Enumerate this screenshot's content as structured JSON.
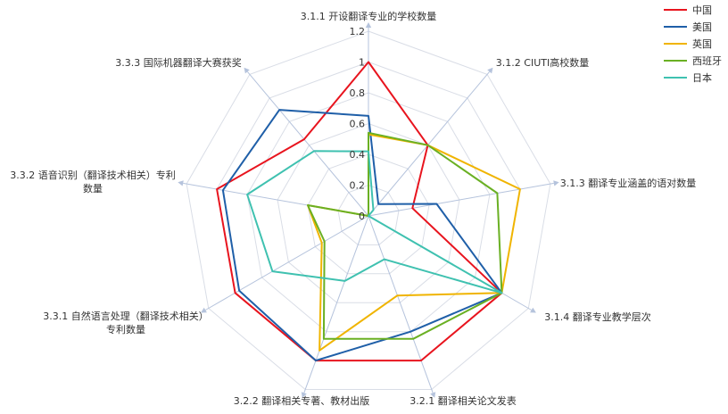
{
  "chart_data": {
    "type": "radar",
    "axes": [
      "3.1.1 开设翻译专业的学校数量",
      "3.1.2 CIUTI高校数量",
      "3.1.3 翻译专业涵盖的语对数量",
      "3.1.4 翻译专业教学层次",
      "3.2.1 翻译相关论文发表",
      "3.2.2 翻译相关专著、教材出版",
      "3.3.1 自然语言处理（翻译技术相关）专利数量",
      "3.3.2 语音识别（翻译技术相关）专利数量",
      "3.3.3 国际机器翻译大赛获奖"
    ],
    "axis_label_lines": [
      [
        "3.1.1 开设翻译专业的学校数量"
      ],
      [
        "3.1.2 CIUTI高校数量"
      ],
      [
        "3.1.3 翻译专业涵盖的语对数量"
      ],
      [
        "3.1.4 翻译专业教学层次"
      ],
      [
        "3.2.1 翻译相关论文发表"
      ],
      [
        "3.2.2 翻译相关专著、教材出版"
      ],
      [
        "3.3.1 自然语言处理（翻译技术相关）",
        "专利数量"
      ],
      [
        "3.3.2 语音识别（翻译技术相关）专利",
        "数量"
      ],
      [
        "3.3.3 国际机器翻译大赛获奖"
      ]
    ],
    "rlim": [
      0,
      1.2
    ],
    "ticks": [
      "0",
      "0.2",
      "0.4",
      "0.6",
      "0.8",
      "1",
      "1.2"
    ],
    "series": [
      {
        "name": "中国",
        "color": "#e8141e",
        "values": [
          1.0,
          0.6,
          0.29,
          1.0,
          1.0,
          1.0,
          1.0,
          1.0,
          0.65
        ]
      },
      {
        "name": "美国",
        "color": "#1f5fa8",
        "values": [
          0.65,
          0.1,
          0.45,
          1.0,
          0.8,
          1.0,
          0.97,
          0.96,
          0.9
        ]
      },
      {
        "name": "英国",
        "color": "#f0b400",
        "values": [
          0.53,
          0.6,
          1.0,
          1.0,
          0.55,
          0.93,
          0.35,
          0.4,
          0.0
        ]
      },
      {
        "name": "西班牙",
        "color": "#6ab023",
        "values": [
          0.54,
          0.6,
          0.85,
          1.0,
          0.85,
          0.85,
          0.33,
          0.4,
          0.0
        ]
      },
      {
        "name": "日本",
        "color": "#3fc1b0",
        "values": [
          0.42,
          0.05,
          0.0,
          1.0,
          0.3,
          0.45,
          0.72,
          0.8,
          0.55
        ]
      }
    ],
    "legend_position": "top-right",
    "grid": true
  }
}
